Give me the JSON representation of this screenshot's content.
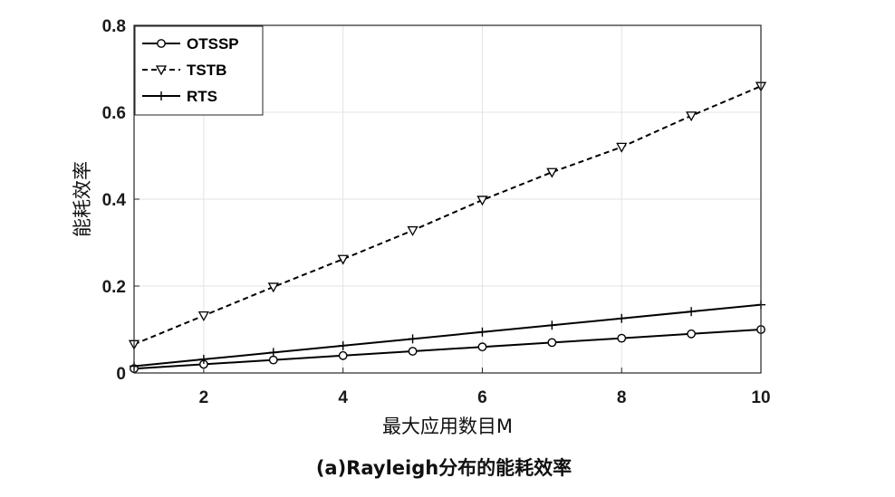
{
  "chart_data": {
    "type": "line",
    "title": "",
    "caption": "(a)Rayleigh分布的能耗效率",
    "xlabel": "最大应用数目M",
    "ylabel": "能耗效率",
    "xlim": [
      1,
      10
    ],
    "ylim": [
      0,
      0.8
    ],
    "xticks": [
      2,
      4,
      6,
      8,
      10
    ],
    "yticks": [
      0,
      0.2,
      0.4,
      0.6,
      0.8
    ],
    "xtick_labels": [
      "2",
      "4",
      "6",
      "8",
      "10"
    ],
    "ytick_labels": [
      "0",
      "0.2",
      "0.4",
      "0.6",
      "0.8"
    ],
    "grid": true,
    "legend_position": "top-left",
    "x": [
      1,
      2,
      3,
      4,
      5,
      6,
      7,
      8,
      9,
      10
    ],
    "series": [
      {
        "name": "OTSSP",
        "marker": "circle",
        "line": "solid",
        "color": "#000000",
        "values": [
          0.01,
          0.02,
          0.03,
          0.04,
          0.05,
          0.06,
          0.07,
          0.08,
          0.09,
          0.1
        ]
      },
      {
        "name": "TSTB",
        "marker": "triangle-down",
        "line": "dashed",
        "color": "#000000",
        "values": [
          0.066,
          0.132,
          0.198,
          0.262,
          0.328,
          0.398,
          0.462,
          0.52,
          0.592,
          0.66
        ]
      },
      {
        "name": "RTS",
        "marker": "plus",
        "line": "solid",
        "color": "#000000",
        "values": [
          0.0157,
          0.0314,
          0.0471,
          0.0628,
          0.0785,
          0.0942,
          0.1099,
          0.1256,
          0.1413,
          0.157
        ]
      }
    ]
  }
}
